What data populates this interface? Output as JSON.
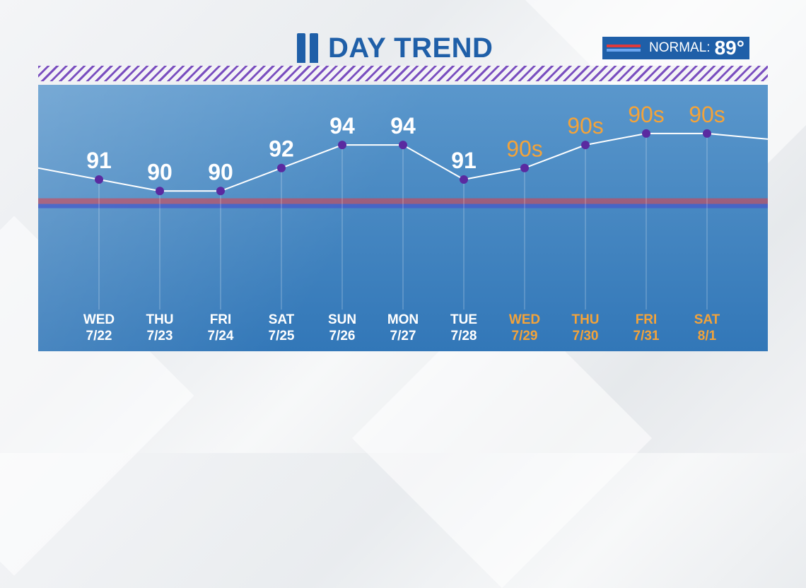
{
  "header": {
    "logo_icon": "channel-11-logo-icon",
    "title": "DAY TREND",
    "normal_label": "NORMAL:",
    "normal_value": "89°"
  },
  "colors": {
    "title_blue": "#1f5fa8",
    "observed_text": "#ffffff",
    "outlook_text": "#f3a33a",
    "normal_red": "#e03a3a",
    "normal_blue": "#6aa5f0",
    "point": "#5a2aa0",
    "stripe_purple": "#7a4fbf"
  },
  "chart_data": {
    "type": "line",
    "normal": 89,
    "ylim": [
      84,
      98
    ],
    "categories": [
      {
        "day": "WED",
        "date": "7/22",
        "label": "91",
        "value": 91,
        "kind": "observed"
      },
      {
        "day": "THU",
        "date": "7/23",
        "label": "90",
        "value": 90,
        "kind": "observed"
      },
      {
        "day": "FRI",
        "date": "7/24",
        "label": "90",
        "value": 90,
        "kind": "observed"
      },
      {
        "day": "SAT",
        "date": "7/25",
        "label": "92",
        "value": 92,
        "kind": "observed"
      },
      {
        "day": "SUN",
        "date": "7/26",
        "label": "94",
        "value": 94,
        "kind": "observed"
      },
      {
        "day": "MON",
        "date": "7/27",
        "label": "94",
        "value": 94,
        "kind": "observed"
      },
      {
        "day": "TUE",
        "date": "7/28",
        "label": "91",
        "value": 91,
        "kind": "observed"
      },
      {
        "day": "WED",
        "date": "7/29",
        "label": "90s",
        "value": 92,
        "kind": "outlook"
      },
      {
        "day": "THU",
        "date": "7/30",
        "label": "90s",
        "value": 94,
        "kind": "outlook"
      },
      {
        "day": "FRI",
        "date": "7/31",
        "label": "90s",
        "value": 95,
        "kind": "outlook"
      },
      {
        "day": "SAT",
        "date": "8/1",
        "label": "90s",
        "value": 95,
        "kind": "outlook"
      }
    ]
  }
}
